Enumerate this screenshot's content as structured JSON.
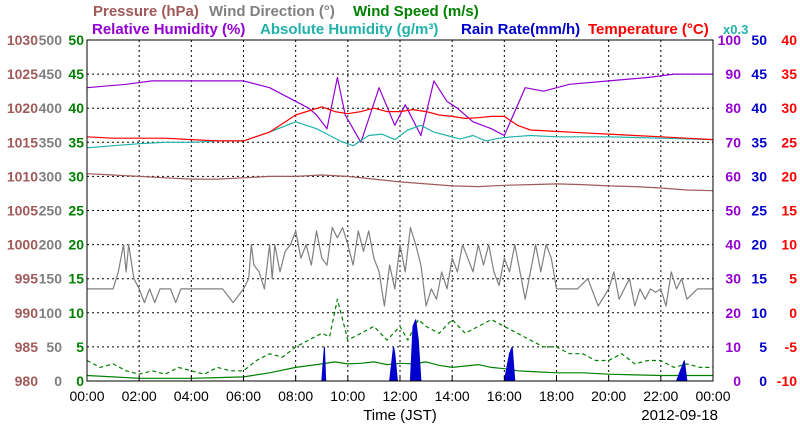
{
  "chart_data": {
    "type": "line",
    "title": "",
    "date_label": "2012-09-18",
    "xlabel": "Time (JST)",
    "x_ticks": [
      "00:00",
      "02:00",
      "04:00",
      "06:00",
      "08:00",
      "10:00",
      "12:00",
      "14:00",
      "16:00",
      "18:00",
      "20:00",
      "22:00",
      "00:00"
    ],
    "grid": true,
    "legend_rows": [
      [
        {
          "name": "Pressure (hPa)",
          "color": "#a05a5a"
        },
        {
          "name": "Wind Direction (°)",
          "color": "#808080"
        },
        {
          "name": "Wind Speed (m/s)",
          "color": "#008000"
        }
      ],
      [
        {
          "name": "Relative Humidity (%)",
          "color": "#9400d3"
        },
        {
          "name": "Absolute Humidity (g/m³)",
          "color": "#20b2aa"
        },
        {
          "name": "Rain Rate(mm/h)",
          "color": "#0000cc"
        },
        {
          "name": "Temperature (°C)",
          "color": "#ff0000"
        },
        {
          "name": "x0.3",
          "color": "#20b2aa"
        }
      ]
    ],
    "axes": {
      "pressure": {
        "ticks": [
          "1030",
          "1025",
          "1020",
          "1015",
          "1010",
          "1005",
          "1000",
          "995",
          "990",
          "985",
          "980"
        ],
        "ylim": [
          980,
          1030
        ],
        "color": "#a05a5a"
      },
      "wind_dir": {
        "ticks": [
          "500",
          "450",
          "400",
          "350",
          "300",
          "250",
          "200",
          "150",
          "100",
          "50",
          "0"
        ],
        "ylim": [
          0,
          500
        ],
        "color": "#808080"
      },
      "wind_speed": {
        "ticks": [
          "50",
          "45",
          "40",
          "35",
          "30",
          "25",
          "20",
          "15",
          "10",
          "5",
          "0"
        ],
        "ylim": [
          0,
          50
        ],
        "color": "#008000"
      },
      "humidity": {
        "ticks": [
          "100",
          "90",
          "80",
          "70",
          "60",
          "50",
          "40",
          "30",
          "20",
          "10",
          "0"
        ],
        "ylim": [
          0,
          100
        ],
        "color": "#9400d3"
      },
      "rain_rate": {
        "ticks": [
          "50",
          "45",
          "40",
          "35",
          "30",
          "25",
          "20",
          "15",
          "10",
          "5",
          "0"
        ],
        "ylim": [
          0,
          50
        ],
        "color": "#0000cc"
      },
      "temperature": {
        "ticks": [
          "40",
          "35",
          "30",
          "25",
          "20",
          "15",
          "10",
          "5",
          "0",
          "-5",
          "-10"
        ],
        "ylim": [
          -10,
          40
        ],
        "color": "#ff0000"
      }
    },
    "series": [
      {
        "name": "Relative Humidity (%)",
        "axis": "humidity",
        "color": "#9400d3",
        "x": [
          0,
          1.5,
          2.5,
          5.5,
          6.0,
          7.0,
          8.5,
          8.8,
          9.2,
          9.6,
          9.9,
          10.5,
          11.2,
          11.8,
          12.2,
          12.8,
          13.3,
          13.8,
          14.2,
          14.8,
          15.5,
          16.0,
          16.8,
          17.5,
          18.5,
          20.0,
          21.5,
          22.5,
          24
        ],
        "y": [
          86,
          87,
          88,
          88,
          88,
          86,
          80,
          78,
          74,
          89,
          78,
          70,
          86,
          75,
          81,
          72,
          88,
          82,
          80,
          76,
          74,
          72,
          86,
          85,
          87,
          88,
          89,
          90,
          90
        ]
      },
      {
        "name": "Absolute Humidity (g/m³)",
        "axis": "pressure",
        "color": "#20b2aa",
        "x": [
          0,
          1,
          2,
          3,
          4,
          5,
          6,
          7,
          8,
          8.8,
          9.3,
          9.7,
          10.2,
          10.8,
          11.3,
          11.8,
          12.3,
          12.8,
          13.3,
          13.8,
          14.3,
          14.8,
          15.3,
          15.8,
          16.3,
          17,
          18,
          19,
          20,
          21,
          22,
          23,
          24
        ],
        "y": [
          1014.2,
          1014.5,
          1014.8,
          1015.0,
          1015.0,
          1015.2,
          1015.2,
          1016.5,
          1018.0,
          1017.0,
          1016.0,
          1015.2,
          1014.5,
          1016.0,
          1016.2,
          1015.4,
          1016.8,
          1017.5,
          1016.5,
          1016.0,
          1015.5,
          1016.0,
          1015.2,
          1015.6,
          1015.8,
          1016.0,
          1015.8,
          1015.8,
          1015.8,
          1015.7,
          1015.6,
          1015.5,
          1015.4
        ]
      },
      {
        "name": "Temperature (°C)",
        "axis": "temperature",
        "color": "#ff0000",
        "x": [
          0,
          1,
          2,
          3,
          4,
          5,
          6,
          7,
          8,
          9,
          9.5,
          10,
          10.5,
          11,
          11.5,
          12,
          12.5,
          13,
          13.5,
          14,
          14.5,
          15,
          15.5,
          16,
          16.5,
          17,
          18,
          19,
          20,
          21,
          22,
          23,
          24
        ],
        "y": [
          25.8,
          25.6,
          25.6,
          25.6,
          25.4,
          25.2,
          25.2,
          26.5,
          29,
          30.2,
          29.5,
          29.2,
          29.5,
          30,
          29.5,
          29.5,
          29.8,
          29.5,
          29,
          28.8,
          28.5,
          28.6,
          28.8,
          28.8,
          27.5,
          26.8,
          26.6,
          26.4,
          26.2,
          26.0,
          25.8,
          25.6,
          25.4
        ]
      },
      {
        "name": "Pressure (hPa)",
        "axis": "pressure",
        "color": "#a05a5a",
        "x": [
          0,
          1,
          2,
          3,
          4,
          5,
          6,
          7,
          8,
          9,
          10,
          11,
          12,
          13,
          14,
          15,
          16,
          17,
          18,
          19,
          20,
          21,
          22,
          23,
          24
        ],
        "y": [
          1010.4,
          1010.2,
          1010.0,
          1009.8,
          1009.6,
          1009.6,
          1009.8,
          1010.0,
          1010.0,
          1010.2,
          1010.0,
          1009.6,
          1009.2,
          1008.9,
          1008.6,
          1008.5,
          1008.7,
          1008.8,
          1008.9,
          1008.8,
          1008.6,
          1008.5,
          1008.3,
          1008.0,
          1007.9
        ]
      },
      {
        "name": "Wind Direction (°)",
        "axis": "wind_dir",
        "color": "#808080",
        "x": [
          0,
          0.5,
          1.0,
          1.2,
          1.4,
          1.5,
          1.6,
          1.8,
          2.0,
          2.2,
          2.4,
          2.6,
          2.8,
          3.0,
          3.2,
          3.4,
          3.6,
          4.0,
          4.4,
          4.8,
          5.2,
          5.6,
          6.0,
          6.2,
          6.3,
          6.4,
          6.6,
          6.8,
          7.0,
          7.1,
          7.2,
          7.4,
          7.6,
          7.8,
          8.0,
          8.2,
          8.4,
          8.6,
          8.8,
          9.0,
          9.2,
          9.4,
          9.6,
          9.8,
          10.0,
          10.2,
          10.4,
          10.6,
          10.8,
          11.0,
          11.2,
          11.4,
          11.6,
          11.8,
          12.0,
          12.2,
          12.4,
          12.6,
          12.8,
          13.0,
          13.2,
          13.4,
          13.6,
          13.8,
          14.0,
          14.2,
          14.4,
          14.6,
          14.8,
          15.0,
          15.2,
          15.4,
          15.6,
          15.8,
          16.0,
          16.2,
          16.4,
          16.6,
          16.8,
          17.0,
          17.2,
          17.4,
          17.6,
          17.8,
          18.0,
          18.4,
          18.8,
          19.2,
          19.6,
          20.0,
          20.2,
          20.4,
          20.6,
          20.8,
          21.0,
          21.2,
          21.4,
          21.6,
          21.8,
          22.0,
          22.2,
          22.4,
          22.6,
          22.8,
          23.0,
          23.4,
          23.8,
          24
        ],
        "y": [
          135,
          135,
          135,
          160,
          200,
          160,
          200,
          150,
          135,
          115,
          135,
          115,
          135,
          135,
          135,
          115,
          135,
          135,
          135,
          135,
          135,
          115,
          135,
          150,
          200,
          170,
          160,
          135,
          200,
          150,
          200,
          160,
          190,
          200,
          220,
          180,
          200,
          170,
          220,
          180,
          170,
          225,
          210,
          225,
          200,
          170,
          220,
          190,
          220,
          180,
          160,
          110,
          170,
          135,
          200,
          160,
          225,
          200,
          170,
          110,
          135,
          120,
          160,
          135,
          180,
          160,
          200,
          180,
          160,
          200,
          170,
          200,
          160,
          140,
          180,
          160,
          200,
          160,
          120,
          160,
          200,
          160,
          200,
          180,
          135,
          135,
          135,
          150,
          110,
          135,
          160,
          120,
          135,
          150,
          110,
          135,
          120,
          135,
          130,
          135,
          110,
          160,
          135,
          150,
          120,
          135,
          135,
          135
        ]
      },
      {
        "name": "Wind Speed (m/s)",
        "axis": "wind_speed",
        "color": "#008000",
        "x": [
          0,
          1,
          2,
          3,
          4,
          5,
          6,
          7,
          8,
          9,
          9.5,
          10,
          10.5,
          11,
          11.5,
          12,
          12.5,
          13,
          13.5,
          14,
          14.5,
          15,
          15.5,
          16,
          16.5,
          17,
          18,
          19,
          20,
          21,
          22,
          23,
          24
        ],
        "y": [
          0.8,
          0.6,
          0.4,
          0.4,
          0.4,
          0.5,
          0.6,
          1.2,
          2.0,
          2.5,
          2.8,
          2.5,
          2.6,
          2.8,
          2.4,
          2.6,
          2.5,
          2.8,
          2.3,
          2.0,
          2.2,
          2.4,
          2.0,
          1.8,
          1.5,
          1.4,
          1.2,
          1.2,
          1.0,
          0.9,
          0.8,
          0.8,
          0.8
        ]
      },
      {
        "name": "Wind Speed gust (m/s)",
        "axis": "wind_speed",
        "color": "#008000",
        "dashed": true,
        "x": [
          0,
          0.5,
          1,
          1.5,
          2,
          2.5,
          3,
          3.5,
          4,
          4.5,
          5,
          5.5,
          6,
          6.5,
          7,
          7.5,
          8,
          8.5,
          9,
          9.3,
          9.6,
          10,
          10.5,
          11,
          11.5,
          12,
          12.3,
          12.7,
          13,
          13.5,
          14,
          14.5,
          15,
          15.5,
          16,
          16.5,
          17,
          17.5,
          18,
          18.5,
          19,
          19.5,
          20,
          20.5,
          21,
          21.5,
          22,
          22.5,
          23,
          23.5,
          24
        ],
        "y": [
          3,
          2,
          2.5,
          1.5,
          1,
          1.5,
          1,
          2,
          1.5,
          1,
          2,
          1.5,
          1.5,
          3,
          4,
          3.5,
          5,
          6,
          7,
          6.5,
          12,
          6,
          7,
          8,
          6,
          8,
          6,
          9,
          8,
          7,
          9,
          7,
          8,
          9,
          8,
          7,
          6,
          5,
          5,
          4,
          4,
          3,
          3,
          4,
          2.5,
          3,
          3,
          2,
          2.5,
          2,
          2
        ]
      },
      {
        "name": "Rain Rate(mm/h)",
        "axis": "rain_rate",
        "color": "#0000cc",
        "kind": "area",
        "x": [
          0,
          8.9,
          9.0,
          9.1,
          9.15,
          9.2,
          11.6,
          11.75,
          11.8,
          11.9,
          12.4,
          12.5,
          12.6,
          12.7,
          12.8,
          16.0,
          16.2,
          16.3,
          16.4,
          22.6,
          22.8,
          22.9,
          23.0,
          24
        ],
        "y": [
          0,
          0,
          0,
          5,
          0,
          0,
          0,
          5,
          4,
          0,
          0,
          8,
          9,
          6,
          0,
          0,
          4,
          5,
          0,
          0,
          2,
          3,
          0,
          0
        ]
      }
    ]
  }
}
